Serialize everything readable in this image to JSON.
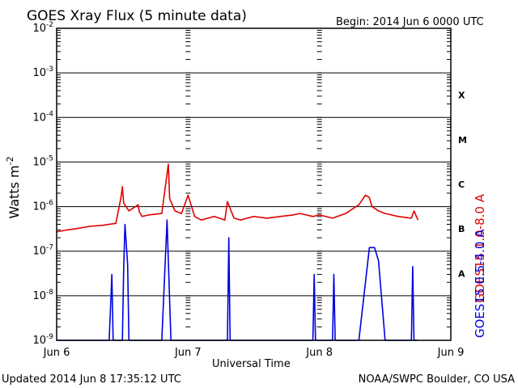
{
  "title": "GOES Xray Flux (5 minute data)",
  "begin_label": "Begin:  2014 Jun 6 0000 UTC",
  "updated_label": "Updated 2014 Jun  8 17:35:12 UTC",
  "credit_label": "NOAA/SWPC Boulder, CO USA",
  "colors": {
    "long": "#e00000",
    "short": "#0000e0",
    "axis": "#000000"
  },
  "chart_data": {
    "type": "line",
    "title": "GOES Xray Flux (5 minute data)",
    "xlabel": "Universal Time",
    "ylabel": "Watts m^-2",
    "yscale": "log",
    "ylim": [
      1e-09,
      0.01
    ],
    "xlim_days": [
      0,
      3
    ],
    "x_tick_labels": [
      "Jun 6",
      "Jun 7",
      "Jun 8",
      "Jun 9"
    ],
    "y_tick_labels": [
      "10^-9",
      "10^-8",
      "10^-7",
      "10^-6",
      "10^-5",
      "10^-4",
      "10^-3",
      "10^-2"
    ],
    "flare_classes": [
      "A",
      "B",
      "C",
      "M",
      "X"
    ],
    "grid": true,
    "series": [
      {
        "name": "GOES15 1.0-8.0 A",
        "color": "#e00000",
        "x": [
          0,
          0.08,
          0.15,
          0.25,
          0.35,
          0.45,
          0.49,
          0.5,
          0.51,
          0.55,
          0.6,
          0.62,
          0.63,
          0.65,
          0.7,
          0.8,
          0.85,
          0.86,
          0.9,
          0.95,
          1.0,
          1.05,
          1.1,
          1.2,
          1.28,
          1.3,
          1.35,
          1.4,
          1.45,
          1.5,
          1.6,
          1.7,
          1.8,
          1.85,
          1.9,
          1.95,
          2.0,
          2.1,
          2.2,
          2.3,
          2.35,
          2.38,
          2.4,
          2.45,
          2.5,
          2.6,
          2.7,
          2.72,
          2.75
        ],
        "y": [
          2.7e-07,
          3e-07,
          3.2e-07,
          3.6e-07,
          3.8e-07,
          4.2e-07,
          1.6e-06,
          2.8e-06,
          1.2e-06,
          8e-07,
          1e-06,
          1.1e-06,
          7.5e-07,
          6e-07,
          6.5e-07,
          7e-07,
          9e-06,
          1.5e-06,
          8e-07,
          7e-07,
          1.8e-06,
          6e-07,
          5e-07,
          6e-07,
          5e-07,
          1.3e-06,
          5.5e-07,
          5e-07,
          5.5e-07,
          6e-07,
          5.5e-07,
          6e-07,
          6.5e-07,
          7e-07,
          6.5e-07,
          6e-07,
          6.5e-07,
          5.5e-07,
          7e-07,
          1.1e-06,
          1.8e-06,
          1.6e-06,
          1e-06,
          8e-07,
          7e-07,
          6e-07,
          5.5e-07,
          8e-07,
          5e-07
        ]
      },
      {
        "name": "GOES15 0.5-4.0 A",
        "color": "#0000e0",
        "x": [
          0,
          0.4,
          0.42,
          0.43,
          0.5,
          0.51,
          0.52,
          0.54,
          0.55,
          0.6,
          0.8,
          0.84,
          0.85,
          0.87,
          0.9,
          1.0,
          1.1,
          1.3,
          1.31,
          1.32,
          1.5,
          1.95,
          1.96,
          1.97,
          2.0,
          2.1,
          2.11,
          2.12,
          2.3,
          2.38,
          2.42,
          2.45,
          2.5,
          2.55,
          2.7,
          2.71,
          2.72,
          2.75
        ],
        "y": [
          1e-09,
          1e-09,
          3e-08,
          1e-09,
          1e-09,
          4e-08,
          4e-07,
          5e-08,
          1e-09,
          1e-09,
          1e-09,
          5e-07,
          6e-08,
          1e-09,
          1e-09,
          1e-09,
          1e-09,
          1e-09,
          2e-07,
          1e-09,
          1e-09,
          1e-09,
          3e-08,
          1e-09,
          1e-09,
          1e-09,
          3e-08,
          1e-09,
          1e-09,
          1.2e-07,
          1.2e-07,
          6e-08,
          1e-09,
          1e-09,
          1e-09,
          4.5e-08,
          1e-09,
          1e-09
        ]
      }
    ]
  }
}
